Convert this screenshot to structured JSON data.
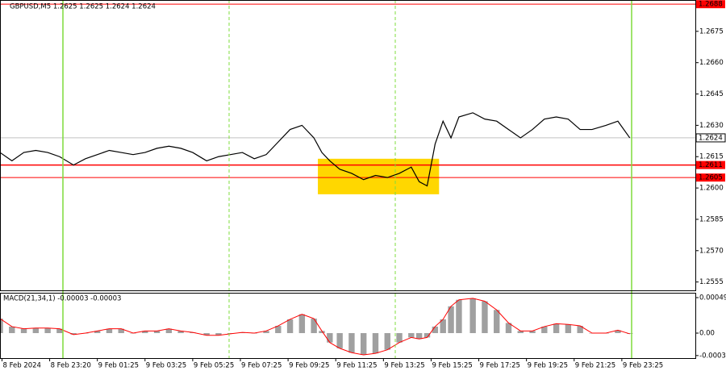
{
  "chart_data": {
    "type": "line",
    "title": "GBPUSD,M5  1.2625 1.2625 1.2624 1.2624",
    "xlim": [
      0,
      350
    ],
    "xticks": [
      {
        "value": 1,
        "label": "8 Feb 2024"
      },
      {
        "value": 25,
        "label": "8 Feb 23:20"
      },
      {
        "value": 49,
        "label": "9 Feb 01:25"
      },
      {
        "value": 73,
        "label": "9 Feb 03:25"
      },
      {
        "value": 97,
        "label": "9 Feb 05:25"
      },
      {
        "value": 121,
        "label": "9 Feb 07:25"
      },
      {
        "value": 145,
        "label": "9 Feb 09:25"
      },
      {
        "value": 169,
        "label": "9 Feb 11:25"
      },
      {
        "value": 193,
        "label": "9 Feb 13:25"
      },
      {
        "value": 217,
        "label": "9 Feb 15:25"
      },
      {
        "value": 241,
        "label": "9 Feb 17:25"
      },
      {
        "value": 265,
        "label": "9 Feb 19:25"
      },
      {
        "value": 289,
        "label": "9 Feb 21:25"
      },
      {
        "value": 313,
        "label": "9 Feb 23:25"
      }
    ],
    "ylim": [
      1.2551,
      1.269
    ],
    "yticks": [
      1.2555,
      {
        "value": 1.257,
        "label": "1.2570"
      },
      1.2585,
      {
        "value": 1.26,
        "label": "1.2600"
      },
      1.2615,
      {
        "value": 1.263,
        "label": "1.2630"
      },
      1.2645,
      {
        "value": 1.266,
        "label": "1.2660"
      },
      1.2675
    ],
    "levels": [
      {
        "value": 1.2688,
        "color": "#ff0000"
      },
      {
        "value": 1.2611,
        "color": "#ff0000"
      },
      {
        "value": 1.2605,
        "color": "#ff0000"
      },
      {
        "value": 1.2624,
        "color": "#c0c0c0"
      }
    ],
    "highlight_box": {
      "x": [
        160,
        221
      ],
      "y": [
        1.2597,
        1.2614
      ],
      "color": "#ffd700"
    },
    "x": [
      0,
      6,
      12,
      18,
      24,
      30,
      37,
      43,
      49,
      55,
      61,
      67,
      73,
      79,
      85,
      91,
      97,
      104,
      110,
      116,
      122,
      128,
      134,
      140,
      146,
      152,
      158,
      162,
      166,
      171,
      177,
      183,
      189,
      195,
      201,
      207,
      211,
      215,
      219,
      223,
      227,
      231,
      238,
      244,
      250,
      256,
      262,
      268,
      274,
      280,
      286,
      292,
      298,
      305,
      311,
      317
    ],
    "series": [
      {
        "name": "GBPUSD",
        "color": "#000000",
        "values": [
          1.2617,
          1.2613,
          1.2617,
          1.2618,
          1.2617,
          1.2615,
          1.2611,
          1.2614,
          1.2616,
          1.2618,
          1.2617,
          1.2616,
          1.2617,
          1.2619,
          1.262,
          1.2619,
          1.2617,
          1.2613,
          1.2615,
          1.2616,
          1.2617,
          1.2614,
          1.2616,
          1.2622,
          1.2628,
          1.263,
          1.2624,
          1.2617,
          1.2613,
          1.2609,
          1.2607,
          1.2604,
          1.2606,
          1.2605,
          1.2607,
          1.261,
          1.2603,
          1.2601,
          1.2621,
          1.2632,
          1.2624,
          1.2634,
          1.2636,
          1.2633,
          1.2632,
          1.2628,
          1.2624,
          1.2628,
          1.2633,
          1.2634,
          1.2633,
          1.2628,
          1.2628,
          1.263,
          1.2632,
          1.2624
        ]
      }
    ],
    "macd": {
      "label": "MACD(21,34,1) -0.00003 -0.00003",
      "ylim": [
        -0.000345,
        0.000557
      ],
      "yticks": [
        -0.00031,
        {
          "value": 0,
          "label": "0.00"
        },
        0.00049
      ],
      "bar_color": "#a0a0a0",
      "line_color": "#ff0000",
      "values": [
        0.0002,
        9e-05,
        6e-05,
        7e-05,
        7e-05,
        6e-05,
        -2e-05,
        0,
        3e-05,
        6e-05,
        6e-05,
        0,
        3e-05,
        3e-05,
        6e-05,
        3e-05,
        1e-05,
        -3e-05,
        -3e-05,
        -1e-05,
        1e-05,
        0,
        3e-05,
        0.0001,
        0.00019,
        0.00026,
        0.0002,
        3e-05,
        -0.00013,
        -0.00021,
        -0.00027,
        -0.0003,
        -0.00028,
        -0.00023,
        -0.00013,
        -6e-05,
        -8e-05,
        -6e-05,
        9e-05,
        0.00019,
        0.00037,
        0.00046,
        0.00048,
        0.00044,
        0.00032,
        0.00014,
        3e-05,
        3e-05,
        9e-05,
        0.00013,
        0.00012,
        0.0001,
        0,
        0,
        4e-05,
        -1e-05
      ]
    }
  }
}
